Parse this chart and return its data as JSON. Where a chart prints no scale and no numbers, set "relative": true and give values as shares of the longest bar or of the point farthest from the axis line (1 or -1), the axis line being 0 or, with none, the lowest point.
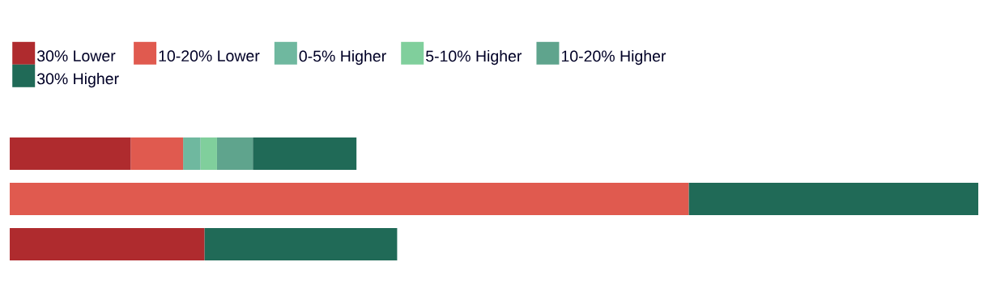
{
  "chart_data": {
    "type": "bar",
    "orientation": "horizontal",
    "stacked": true,
    "relative": true,
    "legend": "top left",
    "categories": [
      null,
      null,
      null
    ],
    "series": [
      {
        "name": "30% Lower",
        "color": "#af2b2e",
        "values": [
          0.125,
          null,
          0.201
        ]
      },
      {
        "name": "10-20% Lower",
        "color": "#e05a4f",
        "values": [
          0.054,
          0.701,
          null
        ]
      },
      {
        "name": "0-5% Higher",
        "color": "#6fb89f",
        "values": [
          0.018,
          null,
          null
        ]
      },
      {
        "name": "5-10% Higher",
        "color": "#80cf9c",
        "values": [
          0.017,
          null,
          null
        ]
      },
      {
        "name": "10-20% Higher",
        "color": "#5fa48d",
        "values": [
          0.037,
          null,
          null
        ]
      },
      {
        "name": "30% Higher",
        "color": "#206a57",
        "values": [
          0.107,
          0.299,
          0.199
        ]
      }
    ]
  }
}
